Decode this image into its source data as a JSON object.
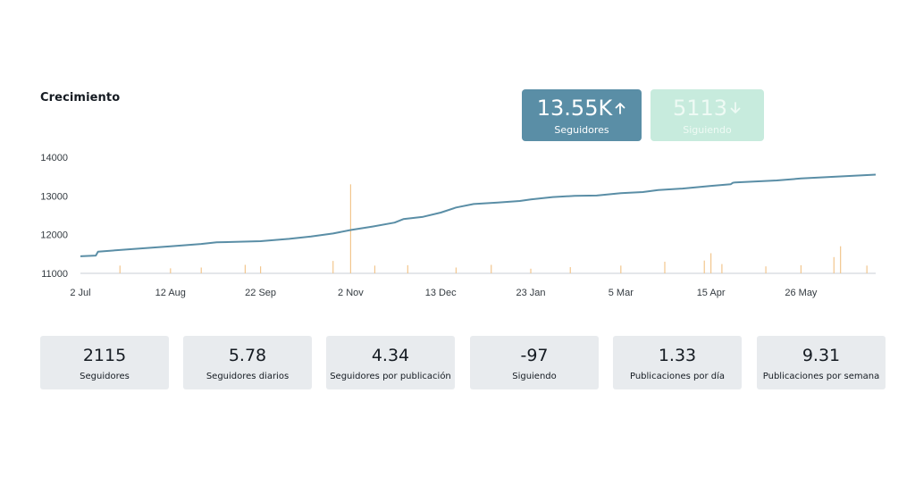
{
  "section": {
    "title": "Crecimiento"
  },
  "badges": [
    {
      "value": "13.55K",
      "label": "Seguidores",
      "direction": "up",
      "color": "#5a8ea6"
    },
    {
      "value": "5113",
      "label": "Siguiendo",
      "direction": "down",
      "color": "#c7ebdd"
    }
  ],
  "stats": [
    {
      "value": "2115",
      "label": "Seguidores"
    },
    {
      "value": "5.78",
      "label": "Seguidores diarios"
    },
    {
      "value": "4.34",
      "label": "Seguidores por publicación"
    },
    {
      "value": "-97",
      "label": "Siguiendo"
    },
    {
      "value": "1.33",
      "label": "Publicaciones por día"
    },
    {
      "value": "9.31",
      "label": "Publicaciones por semana"
    }
  ],
  "colors": {
    "line": "#5a8ea6",
    "bars": "#f2c68e",
    "axis": "#c9cfd4"
  },
  "chart_data": {
    "type": "line",
    "title": "",
    "xlabel": "",
    "ylabel": "",
    "ylim": [
      11000,
      14000
    ],
    "yticks": [
      "11000",
      "12000",
      "13000",
      "14000"
    ],
    "xticks": [
      "2 Jul",
      "12 Aug",
      "22 Sep",
      "2 Nov",
      "13 Dec",
      "23 Jan",
      "5 Mar",
      "15 Apr",
      "26 May"
    ],
    "x_range": [
      "2 Jul",
      "29 Jun"
    ],
    "grid": false,
    "legend": "none",
    "series": [
      {
        "type": "line",
        "x": [
          "2 Jul",
          "9 Jul",
          "10 Jul",
          "24 Jul",
          "12 Aug",
          "26 Aug",
          "2 Sep",
          "22 Sep",
          "5 Oct",
          "15 Oct",
          "25 Oct",
          "2 Nov",
          "12 Nov",
          "22 Nov",
          "26 Nov",
          "5 Dec",
          "13 Dec",
          "20 Dec",
          "28 Dec",
          "8 Jan",
          "18 Jan",
          "23 Jan",
          "2 Feb",
          "12 Feb",
          "22 Feb",
          "5 Mar",
          "15 Mar",
          "22 Mar",
          "2 Apr",
          "15 Apr",
          "24 Apr",
          "25 Apr",
          "26 Apr",
          "15 May",
          "26 May",
          "5 Jun",
          "15 Jun",
          "29 Jun"
        ],
        "y": [
          11440,
          11460,
          11560,
          11620,
          11700,
          11760,
          11800,
          11830,
          11890,
          11950,
          12030,
          12120,
          12210,
          12310,
          12400,
          12460,
          12570,
          12700,
          12790,
          12830,
          12870,
          12910,
          12970,
          13000,
          13010,
          13070,
          13100,
          13150,
          13190,
          13260,
          13300,
          13340,
          13350,
          13400,
          13450,
          13480,
          13510,
          13550
        ]
      },
      {
        "type": "bar",
        "note": "daily posts spikes",
        "x": [
          "20 Jul",
          "12 Aug",
          "26 Aug",
          "15 Sep",
          "22 Sep",
          "25 Oct",
          "2 Nov",
          "13 Nov",
          "28 Nov",
          "20 Dec",
          "5 Jan",
          "23 Jan",
          "10 Feb",
          "5 Mar",
          "25 Mar",
          "12 Apr",
          "15 Apr",
          "20 Apr",
          "10 May",
          "26 May",
          "10 Jun",
          "13 Jun",
          "25 Jun"
        ],
        "y": [
          11200,
          11130,
          11150,
          11220,
          11180,
          11320,
          13300,
          11200,
          11210,
          11150,
          11220,
          11120,
          11160,
          11200,
          11300,
          11330,
          11520,
          11240,
          11180,
          11210,
          11420,
          11700,
          11200
        ]
      }
    ]
  }
}
